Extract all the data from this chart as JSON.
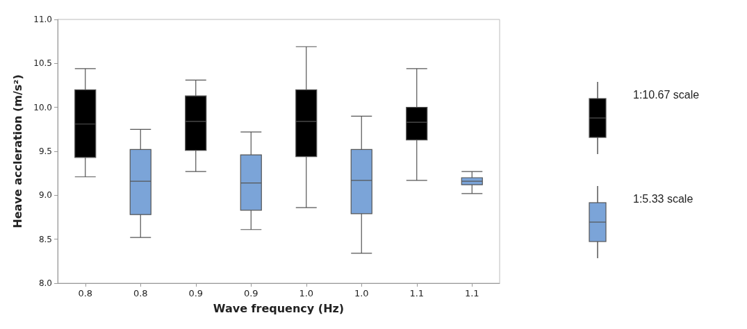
{
  "chart_data": {
    "type": "box",
    "xlabel": "Wave frequency (Hz)",
    "ylabel": "Heave accleration (m/s²)",
    "categories": [
      "0.8",
      "0.8",
      "0.9",
      "0.9",
      "1.0",
      "1.0",
      "1.1",
      "1.1"
    ],
    "ylim": [
      8,
      11
    ],
    "yticks": [
      {
        "value": 8,
        "label": "8.0"
      },
      {
        "value": 8.5,
        "label": "8.5"
      },
      {
        "value": 9,
        "label": "9.0"
      },
      {
        "value": 9.5,
        "label": "9.5"
      },
      {
        "value": 10,
        "label": "10.0"
      },
      {
        "value": 10.5,
        "label": "10.5"
      },
      {
        "value": 11,
        "label": "11.0"
      }
    ],
    "legend": "right",
    "series": [
      {
        "name": "1:10.67 scale",
        "color": "#000000",
        "boxes": [
          {
            "low": 9.21,
            "q1": 9.43,
            "median": 9.81,
            "q3": 10.2,
            "high": 10.44
          },
          null,
          {
            "low": 9.27,
            "q1": 9.51,
            "median": 9.84,
            "q3": 10.13,
            "high": 10.31
          },
          null,
          {
            "low": 8.86,
            "q1": 9.44,
            "median": 9.84,
            "q3": 10.2,
            "high": 10.69
          },
          null,
          {
            "low": 9.17,
            "q1": 9.63,
            "median": 9.83,
            "q3": 10.0,
            "high": 10.44
          },
          null
        ]
      },
      {
        "name": "1:5.33 scale",
        "color": "#7ba4d8",
        "boxes": [
          null,
          {
            "low": 8.52,
            "q1": 8.78,
            "median": 9.16,
            "q3": 9.52,
            "high": 9.75
          },
          null,
          {
            "low": 8.61,
            "q1": 8.83,
            "median": 9.14,
            "q3": 9.46,
            "high": 9.72
          },
          null,
          {
            "low": 8.34,
            "q1": 8.79,
            "median": 9.17,
            "q3": 9.52,
            "high": 9.9
          },
          null,
          {
            "low": 9.02,
            "q1": 9.12,
            "median": 9.16,
            "q3": 9.2,
            "high": 9.27
          }
        ]
      }
    ]
  }
}
